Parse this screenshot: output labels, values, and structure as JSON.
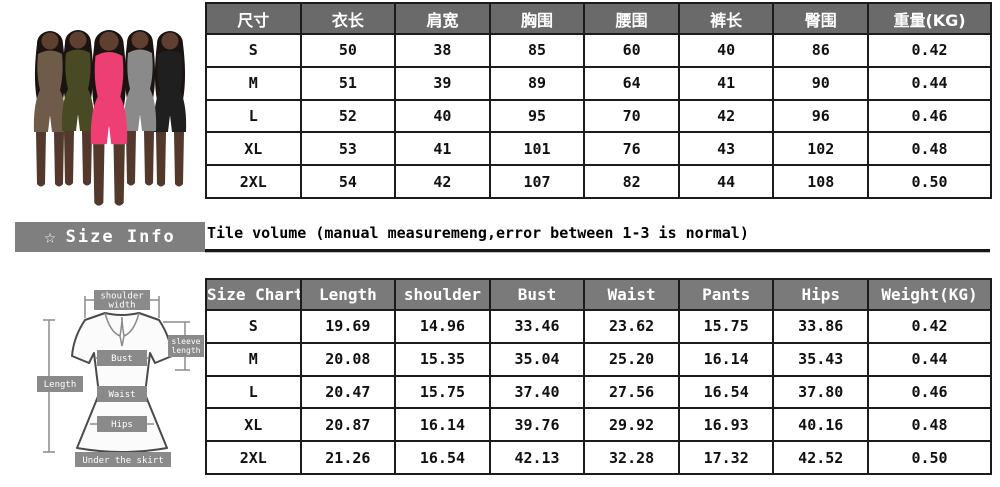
{
  "page": {
    "background": "#ffffff",
    "table_border": "#1b1b1b"
  },
  "product_image": {
    "description": "five models wearing long-sleeve zip-front romper in different colors",
    "hair_color": "#1a1310",
    "skin_color": "#5f4030",
    "leg_color": "#53382c",
    "romper_colors": [
      "#6f5b49",
      "#474a22",
      "#1f1f1f",
      "#8a8a8a",
      "#ee3f75"
    ]
  },
  "size_table_cn": {
    "header_bg": "#6a6a6a",
    "header_color": "#ffffff",
    "headers": [
      "尺寸",
      "衣长",
      "肩宽",
      "胸围",
      "腰围",
      "裤长",
      "臀围",
      "重量(KG)"
    ],
    "rows": [
      [
        "S",
        "50",
        "38",
        "85",
        "60",
        "40",
        "86",
        "0.42"
      ],
      [
        "M",
        "51",
        "39",
        "89",
        "64",
        "41",
        "90",
        "0.44"
      ],
      [
        "L",
        "52",
        "40",
        "95",
        "70",
        "42",
        "96",
        "0.46"
      ],
      [
        "XL",
        "53",
        "41",
        "101",
        "76",
        "43",
        "102",
        "0.48"
      ],
      [
        "2XL",
        "54",
        "42",
        "107",
        "82",
        "44",
        "108",
        "0.50"
      ]
    ]
  },
  "size_info": {
    "bg": "#7f7f7f",
    "text_color": "#ffffff",
    "star_icon": "☆",
    "label": "Size Info",
    "note": "Tile volume (manual measuremeng,error between 1-3 is normal)"
  },
  "size_table_en": {
    "header_bg": "#7a7a7a",
    "header_color": "#ffffff",
    "headers": [
      "Size Chart",
      "Length",
      "shoulder",
      "Bust",
      "Waist",
      "Pants",
      "Hips",
      "Weight(KG)"
    ],
    "rows": [
      [
        "S",
        "19.69",
        "14.96",
        "33.46",
        "23.62",
        "15.75",
        "33.86",
        "0.42"
      ],
      [
        "M",
        "20.08",
        "15.35",
        "35.04",
        "25.20",
        "16.14",
        "35.43",
        "0.44"
      ],
      [
        "L",
        "20.47",
        "15.75",
        "37.40",
        "27.56",
        "16.54",
        "37.80",
        "0.46"
      ],
      [
        "XL",
        "20.87",
        "16.14",
        "39.76",
        "29.92",
        "16.93",
        "40.16",
        "0.48"
      ],
      [
        "2XL",
        "21.26",
        "16.54",
        "42.13",
        "32.28",
        "17.32",
        "42.52",
        "0.50"
      ]
    ]
  },
  "measure_diagram": {
    "label_bg": "#8a8a8a",
    "labels": {
      "shoulder_line1": "shoulder",
      "shoulder_line2": "width",
      "length": "Length",
      "bust": "Bust",
      "waist": "Waist",
      "hips": "Hips",
      "sleeve_line1": "sleeve",
      "sleeve_line2": "length",
      "under_skirt": "Under the skirt"
    }
  }
}
